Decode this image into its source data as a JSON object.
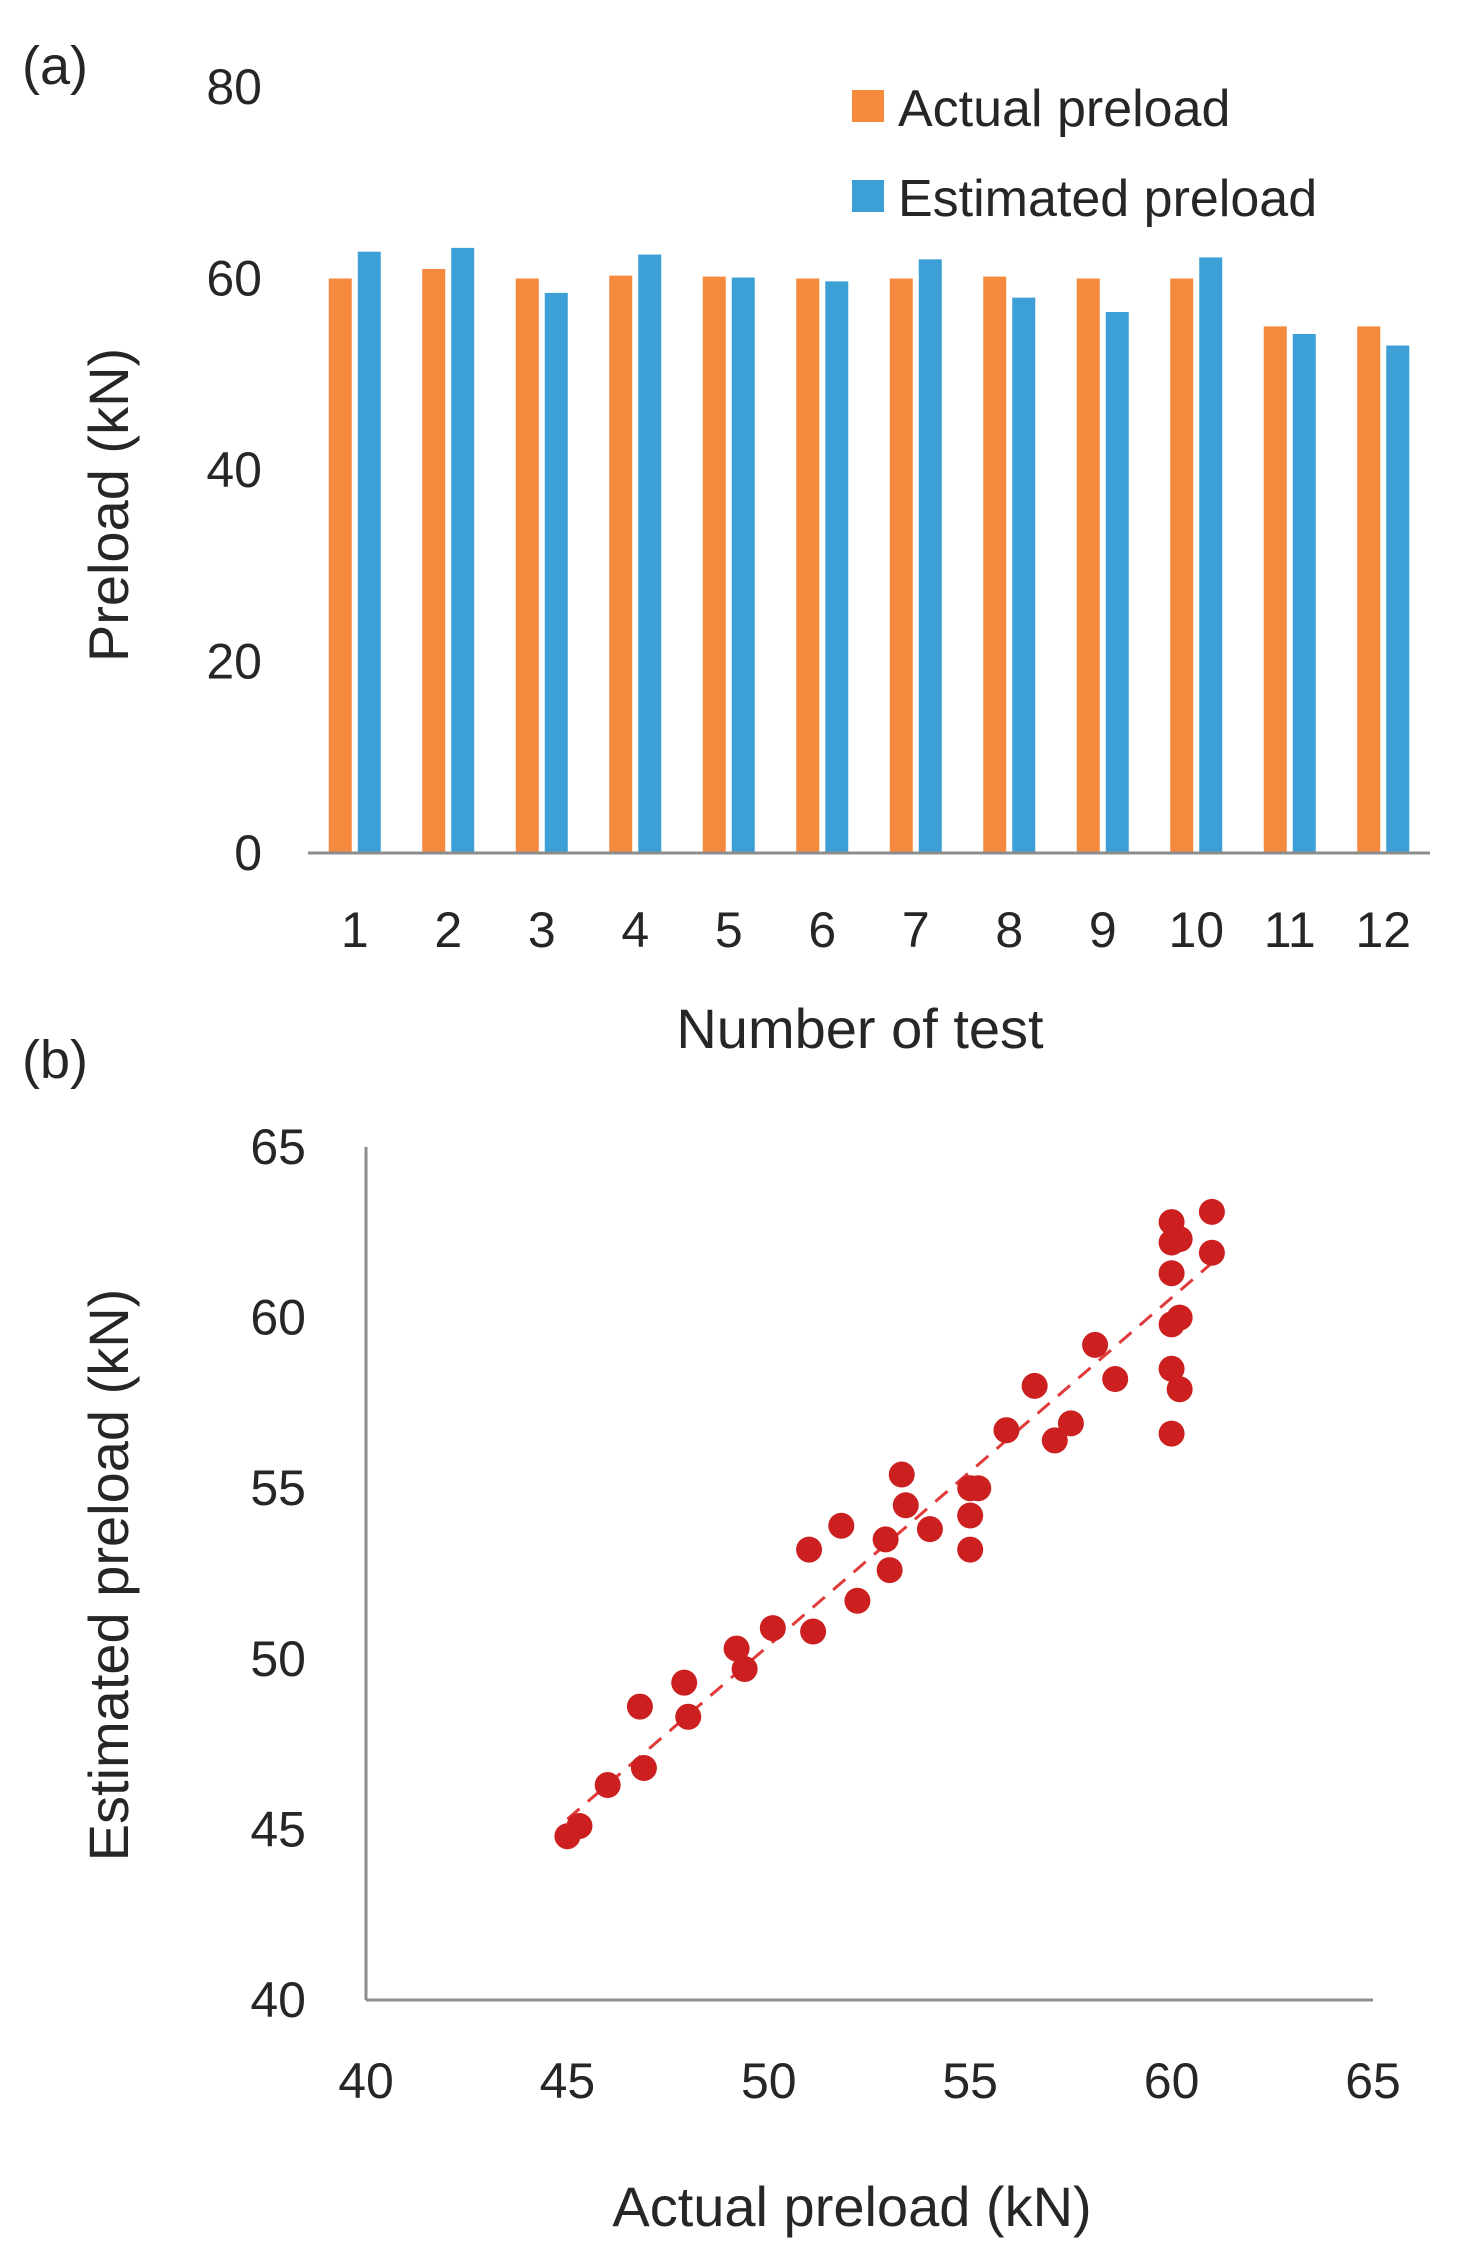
{
  "chart_data": [
    {
      "panel_label": "(a)",
      "type": "bar",
      "title": "",
      "xlabel": "Number of test",
      "ylabel": "Preload (kN)",
      "ylim": [
        0,
        80
      ],
      "yticks": [
        "0",
        "20",
        "40",
        "60",
        "80"
      ],
      "categories": [
        "1",
        "2",
        "3",
        "4",
        "5",
        "6",
        "7",
        "8",
        "9",
        "10",
        "11",
        "12"
      ],
      "legend_position": "top-right",
      "series": [
        {
          "name": "Actual preload",
          "color": "#F5893D",
          "values": [
            60,
            61,
            60,
            60.3,
            60.2,
            60,
            60,
            60.2,
            60,
            60,
            55,
            55
          ]
        },
        {
          "name": "Estimated preload",
          "color": "#3C9FD6",
          "values": [
            62.8,
            63.2,
            58.5,
            62.5,
            60.1,
            59.7,
            62,
            58,
            56.5,
            62.2,
            54.2,
            53
          ]
        }
      ]
    },
    {
      "panel_label": "(b)",
      "type": "scatter",
      "title": "",
      "xlabel": "Actual preload (kN)",
      "ylabel": "Estimated preload (kN)",
      "xlim": [
        40,
        65
      ],
      "ylim": [
        40,
        65
      ],
      "xticks": [
        "40",
        "45",
        "50",
        "55",
        "60",
        "65"
      ],
      "yticks": [
        "40",
        "45",
        "50",
        "55",
        "60",
        "65"
      ],
      "marker_color": "#CC1F1F",
      "trendline": {
        "style": "dashed",
        "color": "#E03A3A",
        "from": [
          45,
          45.3
        ],
        "to": [
          61,
          61.6
        ]
      },
      "points": [
        [
          45.0,
          44.8
        ],
        [
          45.3,
          45.1
        ],
        [
          46.0,
          46.3
        ],
        [
          46.8,
          48.6
        ],
        [
          46.9,
          46.8
        ],
        [
          47.9,
          49.3
        ],
        [
          48.0,
          48.3
        ],
        [
          49.2,
          50.3
        ],
        [
          49.4,
          49.7
        ],
        [
          50.1,
          50.9
        ],
        [
          51.0,
          53.2
        ],
        [
          51.1,
          50.8
        ],
        [
          51.8,
          53.9
        ],
        [
          52.2,
          51.7
        ],
        [
          52.9,
          53.5
        ],
        [
          53.0,
          52.6
        ],
        [
          53.3,
          55.4
        ],
        [
          53.4,
          54.5
        ],
        [
          54.0,
          53.8
        ],
        [
          55.0,
          55.0
        ],
        [
          55.0,
          54.2
        ],
        [
          55.0,
          53.2
        ],
        [
          55.2,
          55.0
        ],
        [
          55.9,
          56.7
        ],
        [
          56.6,
          58.0
        ],
        [
          57.1,
          56.4
        ],
        [
          57.5,
          56.9
        ],
        [
          58.1,
          59.2
        ],
        [
          58.6,
          58.2
        ],
        [
          60.0,
          62.8
        ],
        [
          60.0,
          62.2
        ],
        [
          60.0,
          61.3
        ],
        [
          60.0,
          59.8
        ],
        [
          60.0,
          58.5
        ],
        [
          60.0,
          56.6
        ],
        [
          60.2,
          62.3
        ],
        [
          60.2,
          60.0
        ],
        [
          60.2,
          57.9
        ],
        [
          61.0,
          63.1
        ],
        [
          61.0,
          61.9
        ]
      ]
    }
  ]
}
